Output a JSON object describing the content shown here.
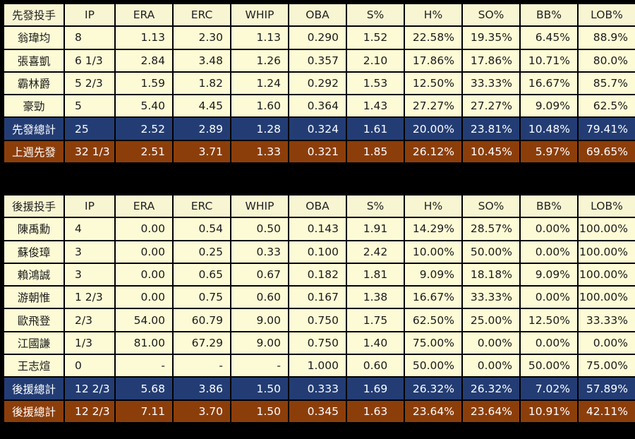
{
  "columns": [
    "IP",
    "ERA",
    "ERC",
    "WHIP",
    "OBA",
    "S%",
    "H%",
    "SO%",
    "BB%",
    "LOB%"
  ],
  "starters": {
    "header": "先發投手",
    "rows": [
      [
        "翁瑋均",
        "8",
        "1.13",
        "2.30",
        "1.13",
        "0.290",
        "1.52",
        "22.58%",
        "19.35%",
        "6.45%",
        "88.9%"
      ],
      [
        "張喜凱",
        "6 1/3",
        "2.84",
        "3.48",
        "1.26",
        "0.357",
        "2.10",
        "17.86%",
        "17.86%",
        "10.71%",
        "80.0%"
      ],
      [
        "霸林爵",
        "5 2/3",
        "1.59",
        "1.82",
        "1.24",
        "0.292",
        "1.53",
        "12.50%",
        "33.33%",
        "16.67%",
        "85.7%"
      ],
      [
        "豪勁",
        "5",
        "5.40",
        "4.45",
        "1.60",
        "0.364",
        "1.43",
        "27.27%",
        "27.27%",
        "9.09%",
        "62.5%"
      ]
    ],
    "total": [
      "先發總計",
      "25",
      "2.52",
      "2.89",
      "1.28",
      "0.324",
      "1.61",
      "20.00%",
      "23.81%",
      "10.48%",
      "79.41%"
    ],
    "prev": [
      "上週先發",
      "32 1/3",
      "2.51",
      "3.71",
      "1.33",
      "0.321",
      "1.85",
      "26.12%",
      "10.45%",
      "5.97%",
      "69.65%"
    ]
  },
  "relievers": {
    "header": "後援投手",
    "rows": [
      [
        "陳禹勳",
        "4",
        "0.00",
        "0.54",
        "0.50",
        "0.143",
        "1.91",
        "14.29%",
        "28.57%",
        "0.00%",
        "100.00%"
      ],
      [
        "蘇俊璋",
        "3",
        "0.00",
        "0.25",
        "0.33",
        "0.100",
        "2.42",
        "10.00%",
        "50.00%",
        "0.00%",
        "100.00%"
      ],
      [
        "賴鴻誠",
        "3",
        "0.00",
        "0.65",
        "0.67",
        "0.182",
        "1.81",
        "9.09%",
        "18.18%",
        "9.09%",
        "100.00%"
      ],
      [
        "游朝惟",
        "1 2/3",
        "0.00",
        "0.75",
        "0.60",
        "0.167",
        "1.38",
        "16.67%",
        "33.33%",
        "0.00%",
        "100.00%"
      ],
      [
        "歐飛登",
        "2/3",
        "54.00",
        "60.79",
        "9.00",
        "0.750",
        "1.75",
        "62.50%",
        "25.00%",
        "12.50%",
        "33.33%"
      ],
      [
        "江國謙",
        "1/3",
        "81.00",
        "67.29",
        "9.00",
        "0.750",
        "1.40",
        "75.00%",
        "0.00%",
        "0.00%",
        "0.00%"
      ],
      [
        "王志煊",
        "0",
        "-",
        "-",
        "-",
        "1.000",
        "0.60",
        "50.00%",
        "0.00%",
        "50.00%",
        "75.00%"
      ]
    ],
    "total": [
      "後援總計",
      "12 2/3",
      "5.68",
      "3.86",
      "1.50",
      "0.333",
      "1.69",
      "26.32%",
      "26.32%",
      "7.02%",
      "57.89%"
    ],
    "prev": [
      "後援總計",
      "12 2/3",
      "7.11",
      "3.70",
      "1.50",
      "0.345",
      "1.63",
      "23.64%",
      "23.64%",
      "10.91%",
      "42.11%"
    ]
  },
  "colors": {
    "cell_bg": "#fdfbd6",
    "total_bg": "#233d74",
    "prev_bg": "#8c3e0a",
    "background": "#000000"
  }
}
